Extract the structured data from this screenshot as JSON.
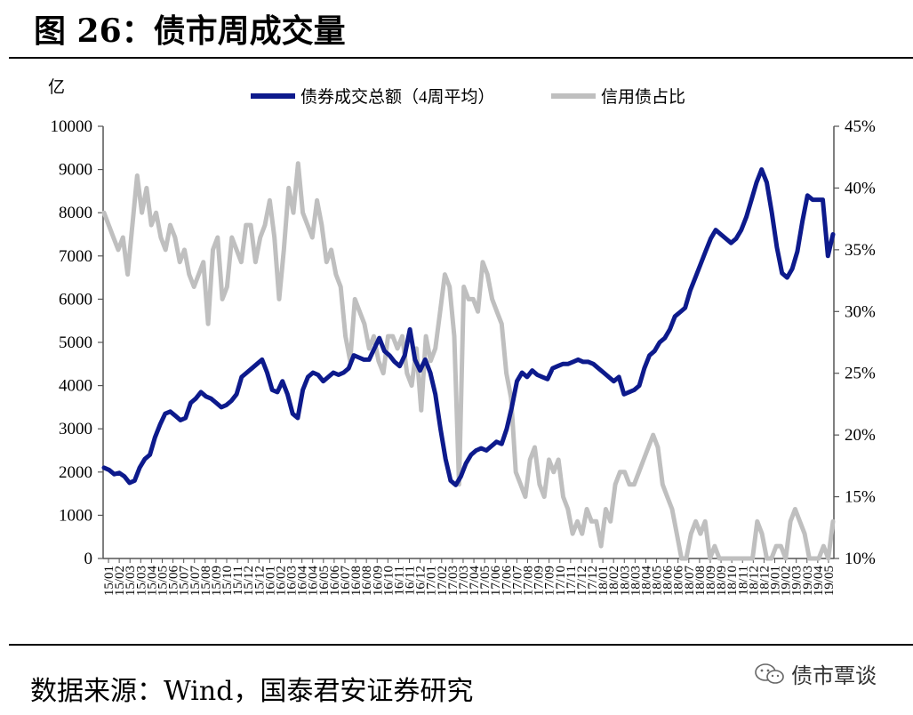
{
  "page": {
    "title": "图 26：债市周成交量",
    "source": "数据来源：Wind，国泰君安证券研究",
    "watermark": "债市覃谈"
  },
  "chart_data": {
    "type": "line",
    "y_unit_label": "亿",
    "ylim_left": [
      0,
      10000
    ],
    "yticks_left": [
      0,
      1000,
      2000,
      3000,
      4000,
      5000,
      6000,
      7000,
      8000,
      9000,
      10000
    ],
    "ylim_right": [
      10,
      45
    ],
    "yticks_right": [
      "10%",
      "15%",
      "20%",
      "25%",
      "30%",
      "35%",
      "40%",
      "45%"
    ],
    "yticks_right_values": [
      10,
      15,
      20,
      25,
      30,
      35,
      40,
      45
    ],
    "x_ticks": [
      "15/01",
      "15/02",
      "15/03",
      "15/03",
      "15/04",
      "15/05",
      "15/06",
      "15/07",
      "15/07",
      "15/08",
      "15/09",
      "15/10",
      "15/11",
      "15/12",
      "15/12",
      "16/01",
      "16/02",
      "16/03",
      "16/04",
      "16/04",
      "16/05",
      "16/06",
      "16/07",
      "16/08",
      "16/08",
      "16/09",
      "16/10",
      "16/11",
      "16/11",
      "16/12",
      "17/01",
      "17/02",
      "17/03",
      "17/03",
      "17/04",
      "17/05",
      "17/06",
      "17/06",
      "17/07",
      "17/08",
      "17/09",
      "17/09",
      "17/10",
      "17/11",
      "17/12",
      "17/12",
      "18/01",
      "18/02",
      "18/03",
      "18/03",
      "18/04",
      "18/05",
      "18/06",
      "18/06",
      "18/07",
      "18/08",
      "18/09",
      "18/09",
      "18/10",
      "18/11",
      "18/12",
      "18/12",
      "19/01",
      "19/02",
      "19/03",
      "19/03",
      "19/04",
      "19/05"
    ],
    "legend_position": "top",
    "series": [
      {
        "name": "债券成交总额（4周平均）",
        "axis": "left",
        "color": "#0d1a8c",
        "values": [
          2100,
          2050,
          1950,
          1980,
          1900,
          1750,
          1800,
          2100,
          2300,
          2400,
          2800,
          3100,
          3350,
          3400,
          3300,
          3200,
          3250,
          3600,
          3700,
          3850,
          3750,
          3700,
          3600,
          3500,
          3550,
          3650,
          3800,
          4200,
          4300,
          4400,
          4500,
          4600,
          4300,
          3900,
          3850,
          4100,
          3800,
          3350,
          3250,
          3900,
          4200,
          4300,
          4250,
          4100,
          4200,
          4300,
          4250,
          4300,
          4400,
          4700,
          4650,
          4600,
          4600,
          4850,
          5100,
          4800,
          4700,
          4550,
          4450,
          4700,
          5300,
          4600,
          4350,
          4600,
          4300,
          3800,
          3000,
          2300,
          1800,
          1700,
          1900,
          2200,
          2400,
          2500,
          2550,
          2500,
          2600,
          2700,
          2650,
          3000,
          3500,
          4100,
          4300,
          4200,
          4350,
          4250,
          4200,
          4150,
          4400,
          4450,
          4500,
          4500,
          4550,
          4600,
          4550,
          4550,
          4500,
          4400,
          4300,
          4200,
          4100,
          4200,
          3800,
          3850,
          3900,
          4000,
          4400,
          4700,
          4800,
          5000,
          5100,
          5300,
          5600,
          5700,
          5800,
          6200,
          6500,
          6800,
          7100,
          7400,
          7600,
          7500,
          7400,
          7300,
          7400,
          7600,
          7900,
          8300,
          8700,
          9000,
          8700,
          8000,
          7200,
          6600,
          6500,
          6700,
          7100,
          7800,
          8400,
          8300,
          8300,
          8300,
          7000,
          7500
        ]
      },
      {
        "name": "信用债占比",
        "axis": "right",
        "color": "#bfbfbf",
        "values": [
          38,
          37,
          36,
          35,
          36,
          33,
          37,
          41,
          38,
          40,
          37,
          38,
          36,
          35,
          37,
          36,
          34,
          35,
          33,
          32,
          33,
          34,
          29,
          35,
          36,
          31,
          32,
          36,
          35,
          34,
          37,
          37,
          34,
          36,
          37,
          39,
          36,
          31,
          35,
          40,
          38,
          42,
          38,
          37,
          36,
          39,
          37,
          34,
          35,
          33,
          32,
          28,
          26,
          31,
          30,
          29,
          27,
          28,
          26,
          25,
          28,
          28,
          27,
          28,
          25,
          24,
          27,
          22,
          28,
          26,
          27,
          30,
          33,
          32,
          28,
          16,
          32,
          31,
          31,
          30,
          34,
          33,
          31,
          30,
          29,
          25,
          23,
          17,
          16,
          15,
          18,
          19,
          16,
          15,
          18,
          17,
          18,
          15,
          14,
          12,
          13,
          12,
          14,
          13,
          13,
          11,
          14,
          13,
          16,
          17,
          17,
          16,
          16,
          17,
          18,
          19,
          20,
          19,
          16,
          15,
          14,
          12,
          10,
          10,
          12,
          13,
          12,
          13,
          10,
          11,
          10,
          10,
          10,
          10,
          10,
          10,
          10,
          10,
          13,
          12,
          10,
          10,
          11,
          11,
          10,
          13,
          14,
          13,
          12,
          10,
          10,
          10,
          11,
          10,
          13
        ]
      }
    ]
  }
}
